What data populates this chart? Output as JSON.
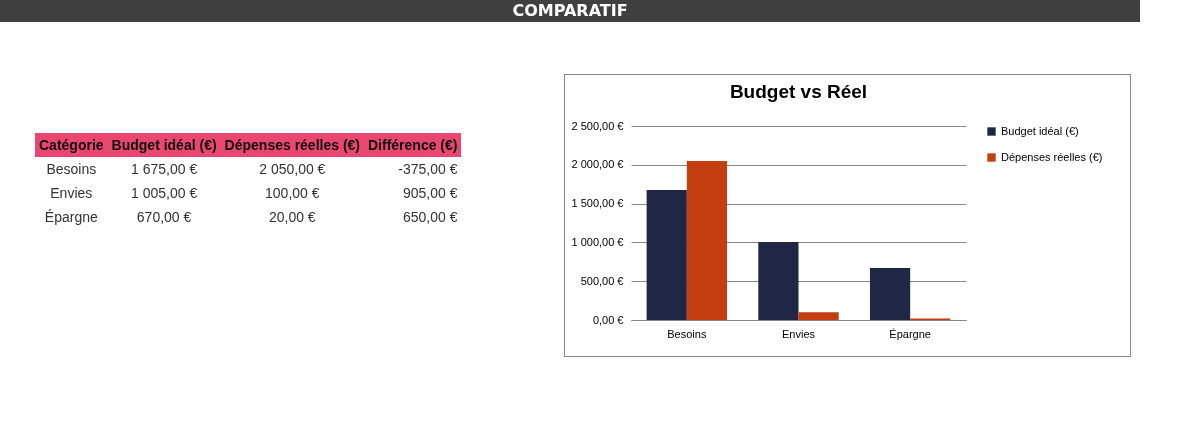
{
  "chart_data": [
    {
      "type": "other",
      "title": "COMPARATIF",
      "annotations": [
        "Catégorie",
        "Budget idéal (€)",
        "Dépenses réelles (€)",
        "Différence (€)",
        "Besoins",
        "1 675,00 €",
        "2 050,00 €",
        "-375,00 €",
        "Envies",
        "1 005,00 €",
        "100,00 €",
        "905,00 €",
        "Épargne",
        "670,00 €",
        "20,00 €",
        "650,00 €"
      ]
    },
    {
      "type": "bar",
      "title": "Budget vs Réel",
      "categories": [
        "Besoins",
        "Envies",
        "Épargne"
      ],
      "series": [
        {
          "name": "Budget idéal (€)",
          "color": "#1f2744",
          "values": [
            1675,
            1005,
            670
          ]
        },
        {
          "name": "Dépenses réelles (€)",
          "color": "#c43e12",
          "values": [
            2050,
            100,
            20
          ]
        }
      ],
      "ylim": [
        0,
        2500
      ],
      "yticks": [
        {
          "value": 0,
          "label": "0,00 €"
        },
        {
          "value": 500,
          "label": "500,00 €"
        },
        {
          "value": 1000,
          "label": "1 000,00 €"
        },
        {
          "value": 1500,
          "label": "1 500,00 €"
        },
        {
          "value": 2000,
          "label": "2 000,00 €"
        },
        {
          "value": 2500,
          "label": "2 500,00 €"
        }
      ],
      "grid": "y",
      "legend": "right"
    }
  ]
}
